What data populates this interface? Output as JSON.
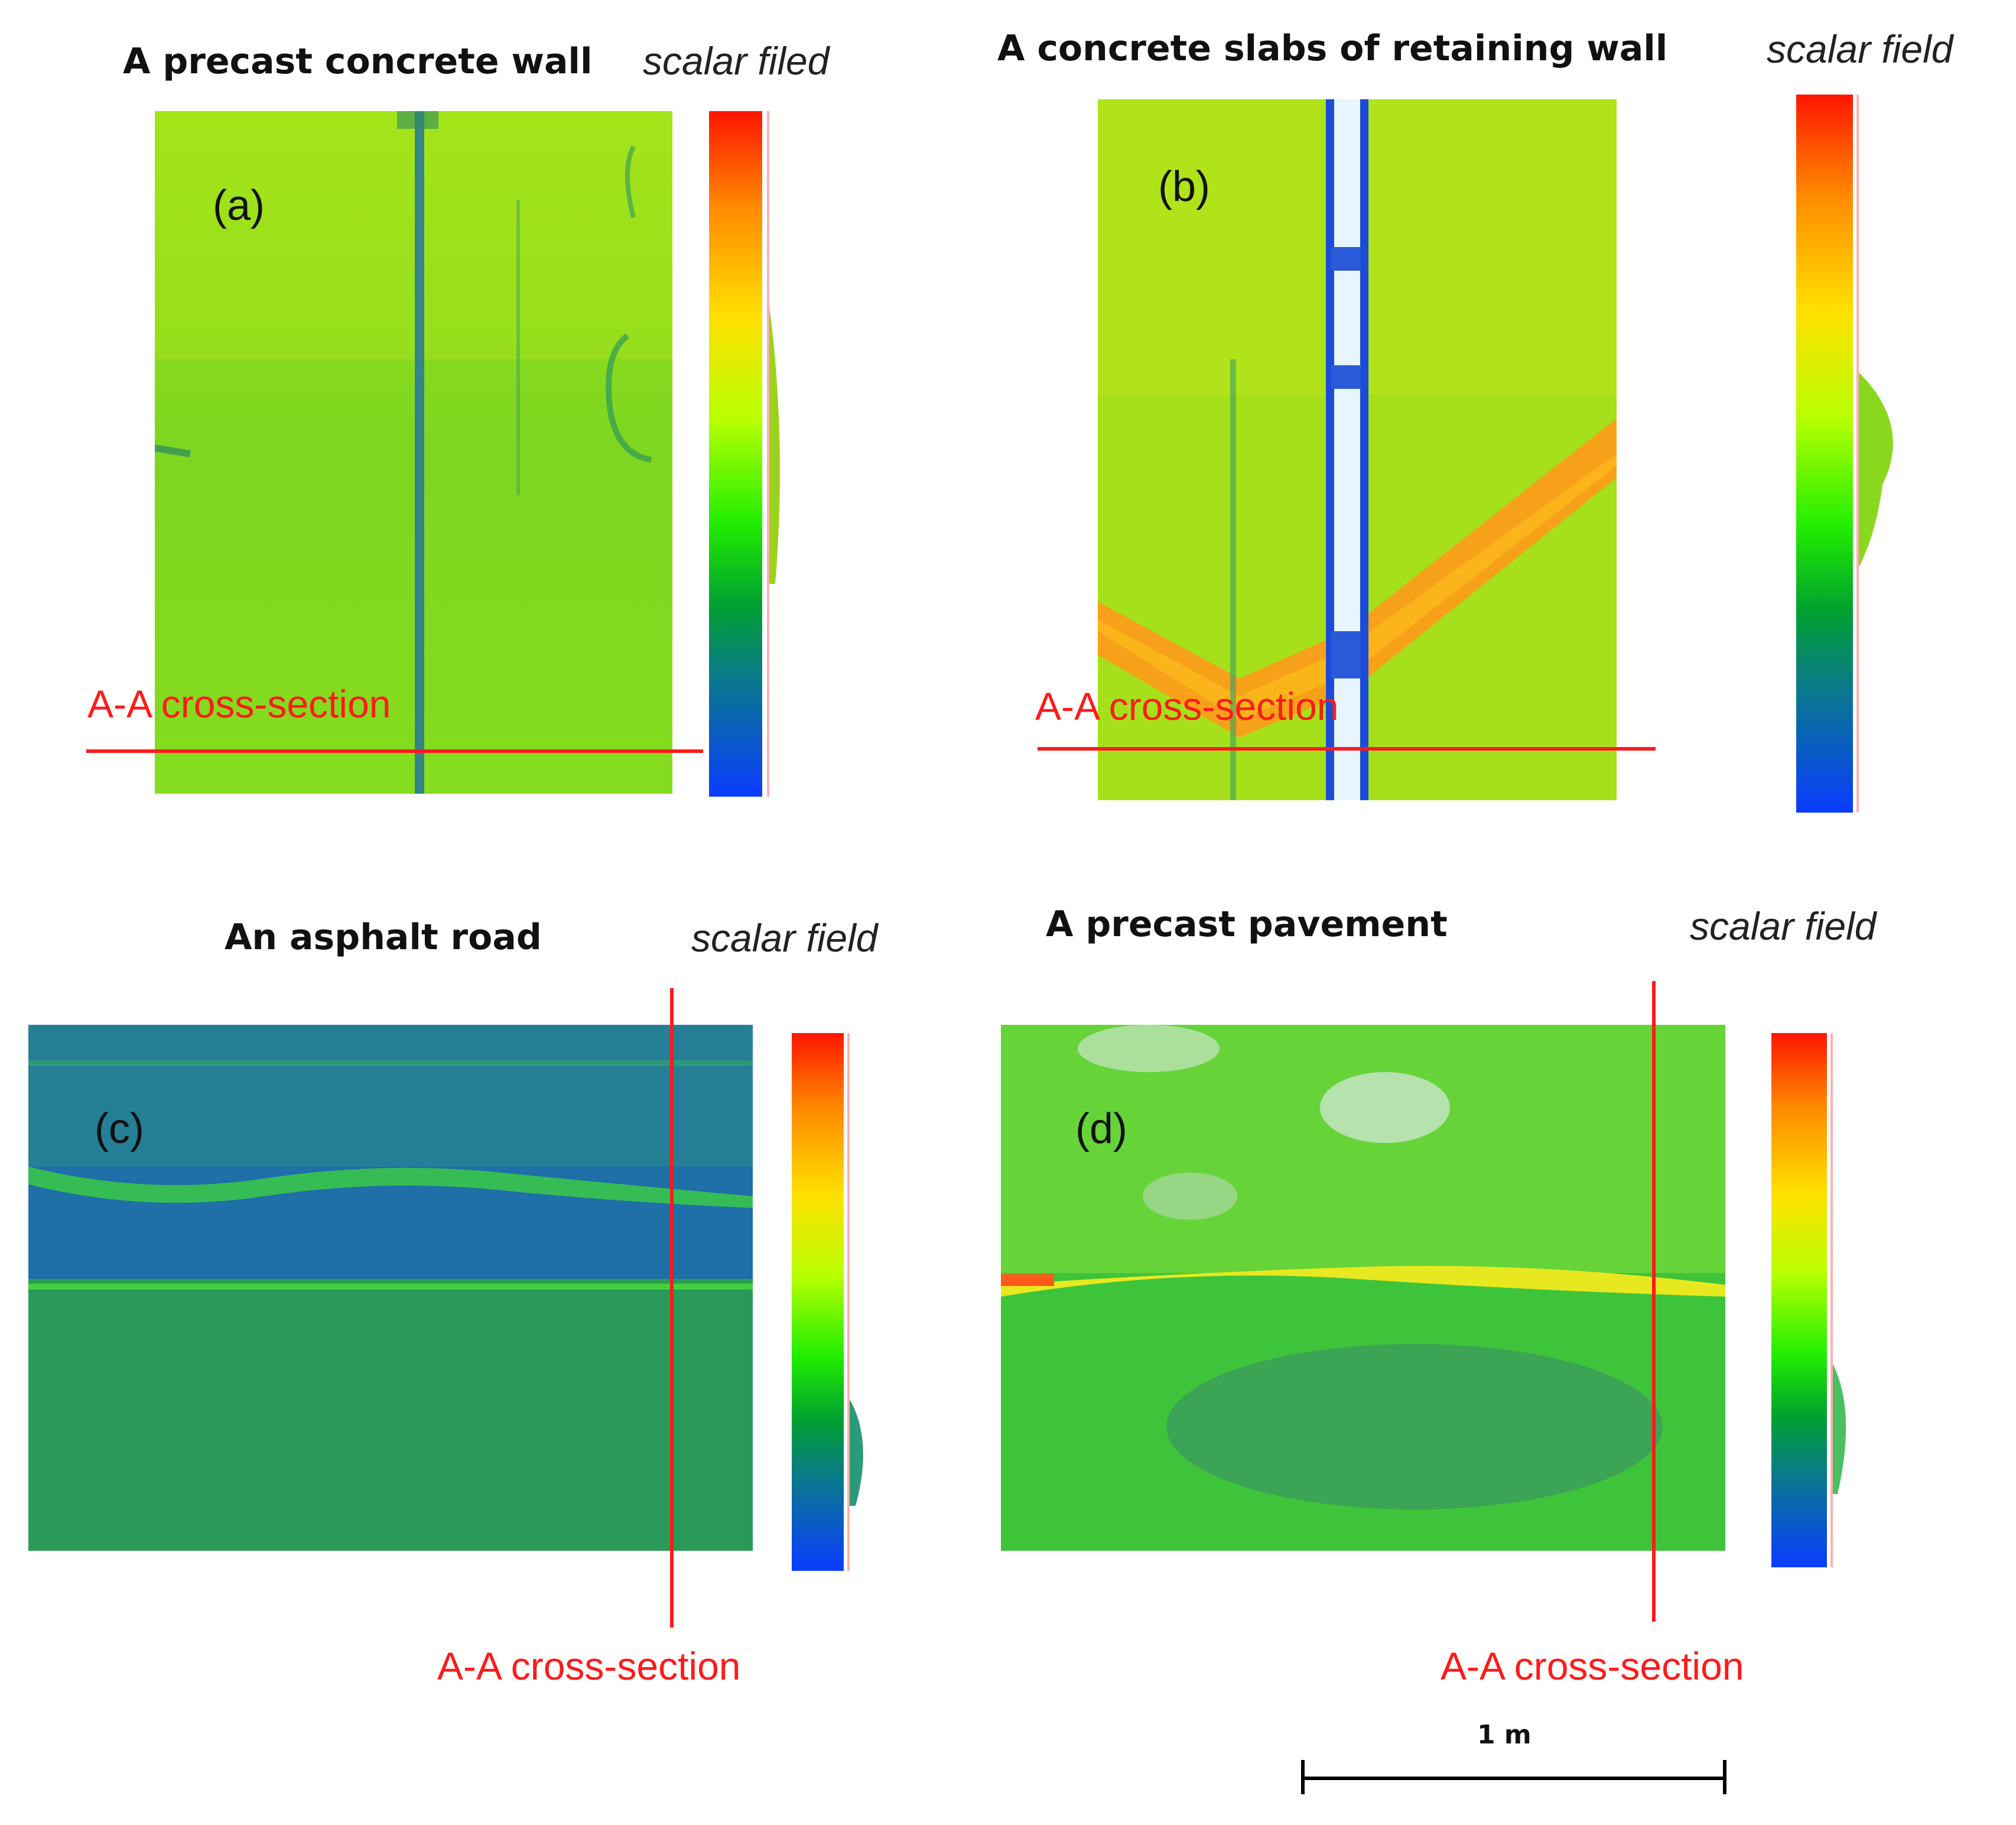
{
  "panels": [
    {
      "id": "a",
      "label": "(a)",
      "title": "A precast concrete wall",
      "scalar_label": "scalar filed",
      "section_label": "A-A cross-section"
    },
    {
      "id": "b",
      "label": "(b)",
      "title": "A concrete slabs of retaining wall",
      "scalar_label": "scalar field",
      "section_label": "A-A cross-section"
    },
    {
      "id": "c",
      "label": "(c)",
      "title": "An asphalt road",
      "scalar_label": "scalar field",
      "section_label": "A-A cross-section"
    },
    {
      "id": "d",
      "label": "(d)",
      "title": "A precast pavement",
      "scalar_label": "scalar field",
      "section_label": "A-A cross-section"
    }
  ],
  "scale_bar": {
    "label": "1 m"
  },
  "colors": {
    "accent_red": "#ff1a1a",
    "colormap": [
      "#0a3cff",
      "#0a7c86",
      "#00a030",
      "#22ee00",
      "#b8ff00",
      "#ffe000",
      "#ff8a00",
      "#ff1500"
    ]
  }
}
